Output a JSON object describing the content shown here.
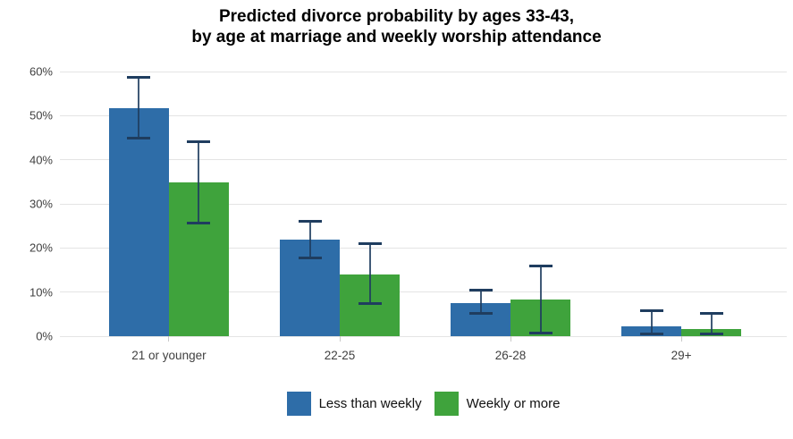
{
  "title": {
    "line1": "Predicted divorce probability by ages 33-43,",
    "line2": "by age at marriage and weekly worship attendance"
  },
  "chart_data": {
    "type": "bar",
    "title": "Predicted divorce probability by ages 33-43, by age at marriage and weekly worship attendance",
    "categories": [
      "21 or younger",
      "22-25",
      "26-28",
      "29+"
    ],
    "series": [
      {
        "name": "Less than weekly",
        "color": "#2E6DA8",
        "values": [
          51.7,
          21.8,
          7.6,
          2.3
        ],
        "ci_low": [
          44.6,
          17.5,
          4.9,
          0.3
        ],
        "ci_high": [
          59.0,
          26.3,
          10.8,
          6.0
        ]
      },
      {
        "name": "Weekly or more",
        "color": "#3FA33C",
        "values": [
          34.8,
          14.0,
          8.3,
          1.7
        ],
        "ci_low": [
          25.4,
          7.0,
          0.4,
          0.3
        ],
        "ci_high": [
          44.3,
          21.2,
          16.2,
          5.5
        ]
      }
    ],
    "xlabel": "",
    "ylabel": "",
    "ylim": [
      0,
      60
    ],
    "yticks": [
      0,
      10,
      20,
      30,
      40,
      50,
      60
    ],
    "ytick_labels": [
      "0%",
      "10%",
      "20%",
      "30%",
      "40%",
      "50%",
      "60%"
    ],
    "grid": true,
    "gridline_color": "#E4E4E4",
    "background": "#FFFFFF",
    "error_bars": true,
    "error_bar_color": "#1F3D5F",
    "legend_position": "bottom"
  }
}
